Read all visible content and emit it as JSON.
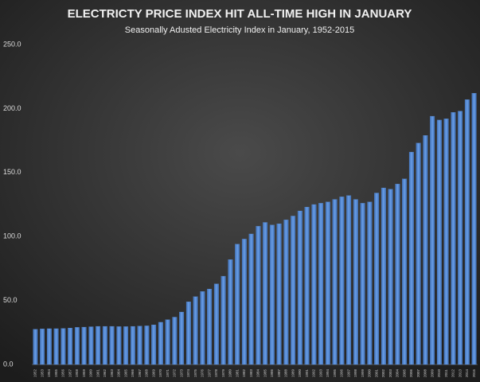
{
  "chart_data": {
    "type": "bar",
    "title": "ELECTRICTY PRICE INDEX HIT ALL-TIME HIGH IN JANUARY",
    "subtitle": "Seasonally Adusted Electricity Index in January, 1952-2015",
    "categories": [
      "1952",
      "1953",
      "1954",
      "1955",
      "1956",
      "1957",
      "1958",
      "1959",
      "1960",
      "1961",
      "1962",
      "1963",
      "1964",
      "1965",
      "1966",
      "1967",
      "1968",
      "1969",
      "1970",
      "1971",
      "1972",
      "1973",
      "1974",
      "1975",
      "1976",
      "1977",
      "1978",
      "1979",
      "1980",
      "1981",
      "1982",
      "1983",
      "1984",
      "1985",
      "1986",
      "1987",
      "1988",
      "1989",
      "1990",
      "1991",
      "1992",
      "1993",
      "1994",
      "1995",
      "1996",
      "1997",
      "1998",
      "1999",
      "2000",
      "2001",
      "2002",
      "2003",
      "2004",
      "2005",
      "2006",
      "2007",
      "2008",
      "2009",
      "2010",
      "2011",
      "2012",
      "2013",
      "2014",
      "2015"
    ],
    "values": [
      27.5,
      27.8,
      28,
      28,
      28.2,
      28.5,
      29,
      29.2,
      29.5,
      29.8,
      29.8,
      29.8,
      29.6,
      29.6,
      29.8,
      30,
      30.2,
      31,
      33,
      35,
      37,
      41,
      49,
      53,
      57,
      59,
      63,
      69,
      82,
      94,
      98,
      102,
      108,
      111,
      109,
      110,
      113,
      116,
      120,
      123,
      125,
      126,
      127,
      129,
      131,
      132,
      129,
      126,
      127,
      134,
      138,
      137,
      141,
      145,
      166,
      173,
      179,
      194,
      191,
      192,
      197,
      198,
      207,
      212
    ],
    "color": "#5b8fd6",
    "ylim": [
      0,
      250
    ],
    "yticks": [
      {
        "value": 0,
        "label": "0.0"
      },
      {
        "value": 50,
        "label": "50.0"
      },
      {
        "value": 100,
        "label": "100.0"
      },
      {
        "value": 150,
        "label": "150.0"
      },
      {
        "value": 200,
        "label": "200.0"
      },
      {
        "value": 250,
        "label": "250.0"
      }
    ],
    "grid": false
  }
}
